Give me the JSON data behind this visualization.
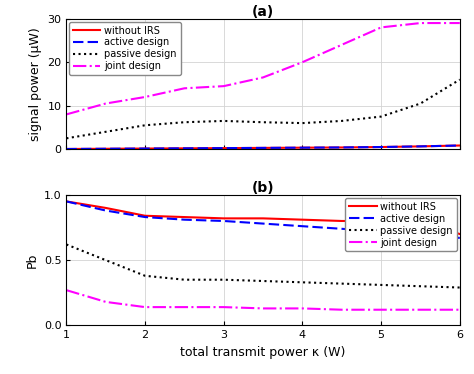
{
  "x": [
    1,
    1.5,
    2,
    2.5,
    3,
    3.5,
    4,
    4.5,
    5,
    5.5,
    6
  ],
  "a_without_irs": [
    0.05,
    0.1,
    0.15,
    0.2,
    0.25,
    0.3,
    0.35,
    0.4,
    0.5,
    0.65,
    0.85
  ],
  "a_active_design": [
    0.05,
    0.1,
    0.15,
    0.2,
    0.25,
    0.3,
    0.35,
    0.4,
    0.5,
    0.65,
    0.85
  ],
  "a_passive_design": [
    2.5,
    4.0,
    5.5,
    6.2,
    6.5,
    6.2,
    6.0,
    6.5,
    7.5,
    10.5,
    16.0
  ],
  "a_joint_design": [
    8.0,
    10.5,
    12.0,
    14.0,
    14.5,
    16.5,
    20.0,
    24.0,
    28.0,
    29.0,
    29.0
  ],
  "b_without_irs": [
    0.95,
    0.9,
    0.84,
    0.83,
    0.82,
    0.82,
    0.81,
    0.8,
    0.8,
    0.79,
    0.7
  ],
  "b_active_design": [
    0.95,
    0.88,
    0.83,
    0.81,
    0.8,
    0.78,
    0.76,
    0.74,
    0.72,
    0.7,
    0.67
  ],
  "b_passive_design": [
    0.62,
    0.5,
    0.38,
    0.35,
    0.35,
    0.34,
    0.33,
    0.32,
    0.31,
    0.3,
    0.29
  ],
  "b_joint_design": [
    0.27,
    0.18,
    0.14,
    0.14,
    0.14,
    0.13,
    0.13,
    0.12,
    0.12,
    0.12,
    0.12
  ],
  "title_a": "(a)",
  "title_b": "(b)",
  "ylabel_a": "signal power (μW)",
  "ylabel_b": "Pb",
  "xlabel": "total transmit power κ (W)",
  "xlim": [
    1,
    6
  ],
  "ylim_a": [
    0,
    30
  ],
  "ylim_b": [
    0,
    1
  ],
  "yticks_a": [
    0,
    10,
    20,
    30
  ],
  "yticks_b": [
    0,
    0.5,
    1
  ],
  "xticks": [
    1,
    2,
    3,
    4,
    5,
    6
  ],
  "color_without_irs": "#FF0000",
  "color_active": "#0000FF",
  "color_passive": "#000000",
  "color_joint": "#FF00FF",
  "label_without_irs": "without IRS",
  "label_active": "active design",
  "label_passive": "passive design",
  "label_joint": "joint design",
  "bg_color": "#FFFFFF",
  "grid_color": "#D3D3D3",
  "lw": 1.5,
  "legend_fontsize": 7.0,
  "tick_fontsize": 8.0,
  "label_fontsize": 9.0,
  "title_fontsize": 10.0
}
